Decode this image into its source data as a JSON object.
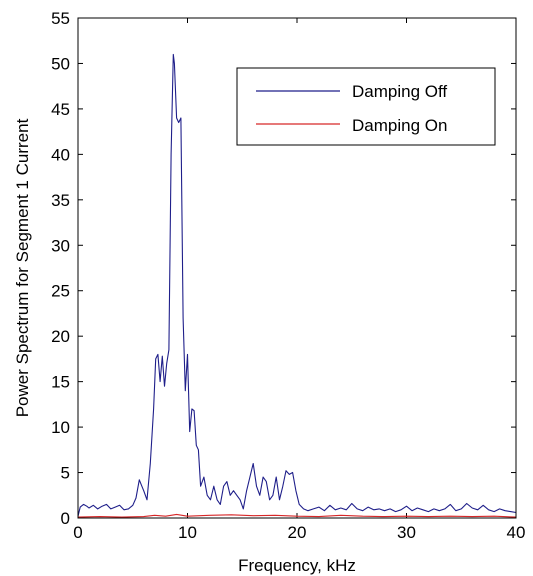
{
  "chart_data": {
    "type": "line",
    "xlabel": "Frequency, kHz",
    "ylabel": "Power Spectrum for Segment 1 Current",
    "xlim": [
      0,
      40
    ],
    "ylim": [
      0,
      55
    ],
    "xticks": [
      "0",
      "10",
      "20",
      "30",
      "40"
    ],
    "yticks": [
      "0",
      "5",
      "10",
      "15",
      "20",
      "25",
      "30",
      "35",
      "40",
      "45",
      "50",
      "55"
    ],
    "grid": false,
    "legend_position": "top-right",
    "series": [
      {
        "name": "Damping Off",
        "color": "#1f1f8a",
        "x": [
          0,
          0.2,
          0.5,
          0.8,
          1.0,
          1.4,
          1.8,
          2.2,
          2.6,
          3.0,
          3.4,
          3.8,
          4.2,
          4.6,
          5.0,
          5.3,
          5.6,
          5.8,
          6.0,
          6.3,
          6.6,
          6.9,
          7.1,
          7.3,
          7.5,
          7.7,
          7.9,
          8.1,
          8.3,
          8.5,
          8.7,
          8.8,
          9.0,
          9.2,
          9.4,
          9.6,
          9.8,
          10.0,
          10.2,
          10.4,
          10.6,
          10.8,
          11.0,
          11.2,
          11.5,
          11.8,
          12.1,
          12.4,
          12.7,
          13.0,
          13.3,
          13.6,
          13.9,
          14.2,
          14.5,
          14.8,
          15.1,
          15.4,
          15.7,
          16.0,
          16.3,
          16.6,
          16.9,
          17.2,
          17.5,
          17.8,
          18.1,
          18.4,
          18.7,
          19.0,
          19.3,
          19.6,
          19.9,
          20.2,
          20.6,
          21.0,
          21.5,
          22.0,
          22.5,
          23.0,
          23.5,
          24.0,
          24.5,
          25.0,
          25.5,
          26.0,
          26.5,
          27.0,
          27.5,
          28.0,
          28.5,
          29.0,
          29.5,
          30.0,
          30.5,
          31.0,
          31.5,
          32.0,
          32.5,
          33.0,
          33.5,
          34.0,
          34.5,
          35.0,
          35.5,
          36.0,
          36.5,
          37.0,
          37.5,
          38.0,
          38.5,
          39.0,
          39.5,
          40.0
        ],
        "y": [
          0.2,
          1.2,
          1.5,
          1.3,
          1.1,
          1.4,
          1.0,
          1.3,
          1.5,
          1.0,
          1.2,
          1.4,
          0.9,
          1.0,
          1.4,
          2.2,
          4.2,
          3.6,
          3.0,
          2.0,
          6.0,
          12.0,
          17.5,
          18.0,
          15.0,
          17.8,
          14.5,
          17.0,
          18.5,
          40.0,
          51.0,
          50.0,
          44.0,
          43.5,
          44.0,
          22.0,
          14.0,
          18.0,
          9.5,
          12.0,
          11.8,
          8.0,
          7.5,
          3.5,
          4.5,
          2.5,
          2.0,
          3.5,
          2.0,
          1.5,
          3.5,
          4.0,
          2.5,
          3.0,
          2.5,
          2.0,
          1.0,
          3.0,
          4.5,
          6.0,
          3.5,
          2.5,
          4.5,
          4.0,
          2.0,
          2.5,
          4.5,
          2.0,
          3.5,
          5.2,
          4.8,
          5.0,
          3.0,
          1.5,
          1.0,
          0.8,
          1.0,
          1.2,
          0.8,
          1.4,
          0.9,
          1.1,
          0.9,
          1.6,
          1.0,
          0.8,
          1.2,
          0.9,
          1.0,
          0.8,
          1.0,
          0.7,
          0.9,
          1.3,
          0.8,
          1.1,
          0.9,
          0.7,
          1.0,
          0.8,
          1.0,
          1.5,
          0.8,
          1.0,
          1.6,
          1.1,
          0.9,
          1.4,
          0.9,
          0.7,
          1.0,
          0.8,
          0.7,
          0.6
        ]
      },
      {
        "name": "Damping On",
        "color": "#d62728",
        "x": [
          0,
          2,
          4,
          6,
          7,
          8,
          9,
          10,
          12,
          14,
          16,
          18,
          20,
          22,
          24,
          26,
          28,
          30,
          32,
          34,
          36,
          38,
          40
        ],
        "y": [
          0.1,
          0.15,
          0.1,
          0.15,
          0.3,
          0.2,
          0.4,
          0.2,
          0.3,
          0.35,
          0.25,
          0.3,
          0.2,
          0.15,
          0.3,
          0.2,
          0.15,
          0.2,
          0.15,
          0.2,
          0.15,
          0.2,
          0.1
        ]
      }
    ]
  }
}
